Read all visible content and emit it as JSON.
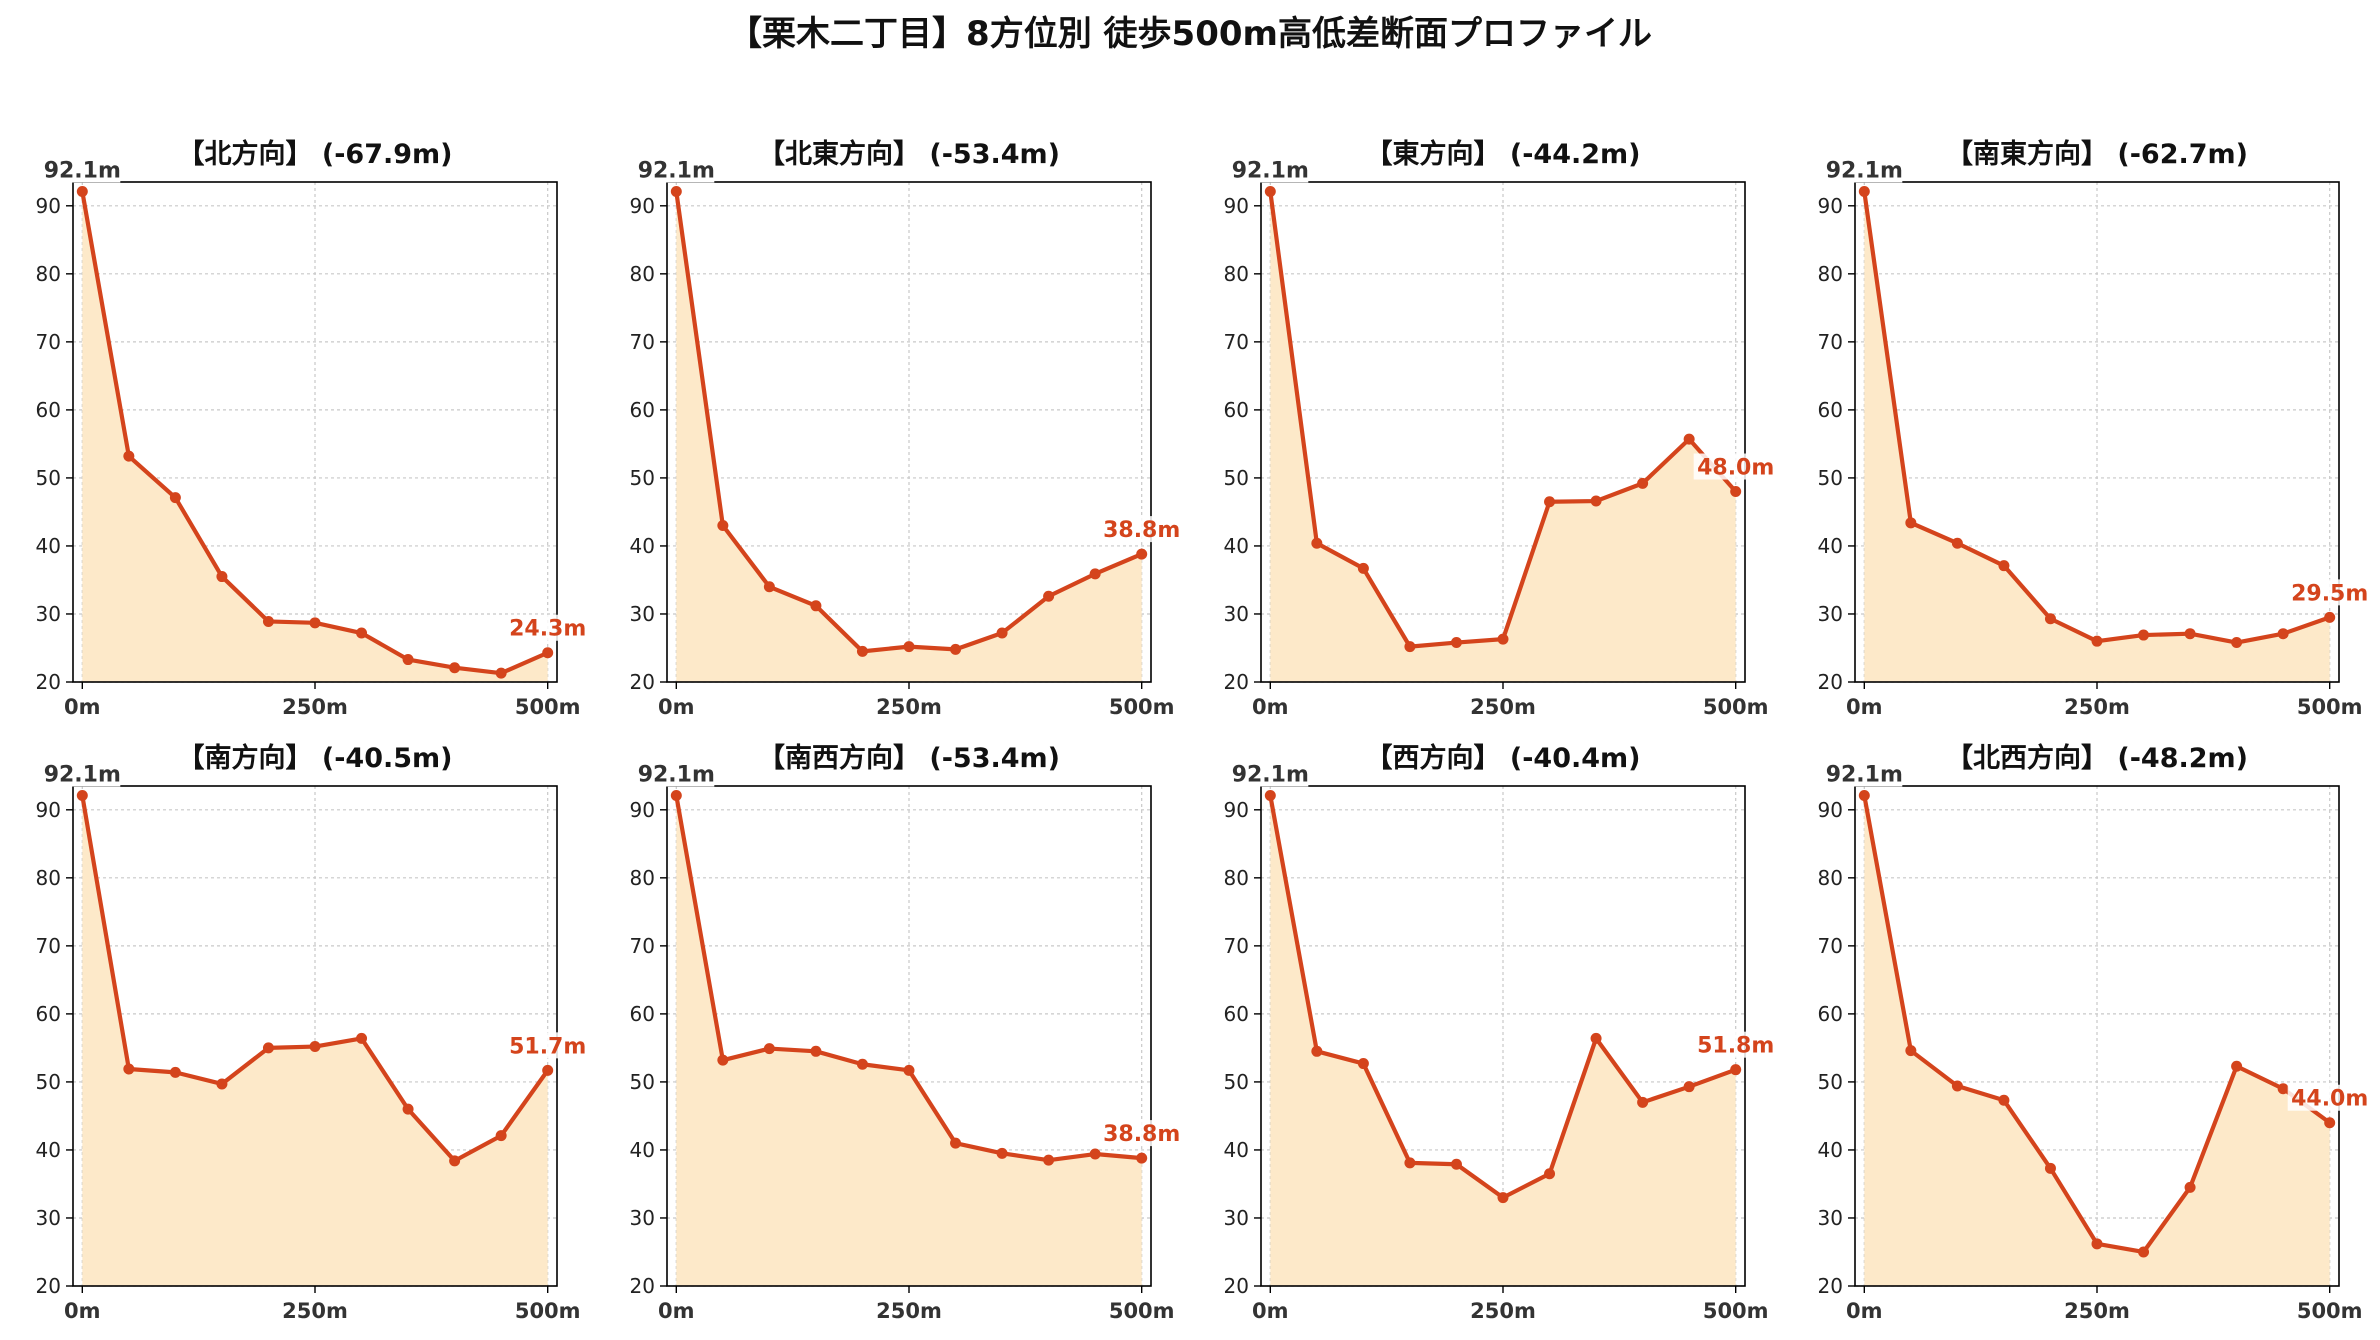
{
  "title": "【栗木二丁目】8方位別 徒歩500m高低差断面プロファイル",
  "colors": {
    "line": "#d4441c",
    "fill": "#fde9c9",
    "grid": "#c8c8c8",
    "axis": "#000000",
    "tick_label": "#222222",
    "xtick_label": "#333333"
  },
  "chart_data": [
    {
      "type": "area",
      "title": "【北方向】 (-67.9m)",
      "x": [
        0,
        50,
        100,
        150,
        200,
        250,
        300,
        350,
        400,
        450,
        500
      ],
      "values": [
        92.1,
        53.2,
        47.1,
        35.5,
        28.9,
        28.7,
        27.2,
        23.3,
        22.1,
        21.3,
        24.3
      ],
      "start_label": "92.1m",
      "end_label": "24.3m",
      "xticks": [
        "0m",
        "250m",
        "500m"
      ],
      "yticks": [
        20,
        30,
        40,
        50,
        60,
        70,
        80,
        90
      ],
      "ylim": [
        20,
        93.5
      ],
      "xlim": [
        -10,
        510
      ],
      "grid": true
    },
    {
      "type": "area",
      "title": "【北東方向】 (-53.4m)",
      "x": [
        0,
        50,
        100,
        150,
        200,
        250,
        300,
        350,
        400,
        450,
        500
      ],
      "values": [
        92.1,
        43.0,
        34.0,
        31.2,
        24.5,
        25.2,
        24.8,
        27.2,
        32.6,
        35.9,
        38.8
      ],
      "start_label": "92.1m",
      "end_label": "38.8m",
      "xticks": [
        "0m",
        "250m",
        "500m"
      ],
      "yticks": [
        20,
        30,
        40,
        50,
        60,
        70,
        80,
        90
      ],
      "ylim": [
        20,
        93.5
      ],
      "xlim": [
        -10,
        510
      ],
      "grid": true
    },
    {
      "type": "area",
      "title": "【東方向】 (-44.2m)",
      "x": [
        0,
        50,
        100,
        150,
        200,
        250,
        300,
        350,
        400,
        450,
        500
      ],
      "values": [
        92.1,
        40.4,
        36.7,
        25.2,
        25.8,
        26.3,
        46.5,
        46.6,
        49.2,
        55.7,
        48.0
      ],
      "start_label": "92.1m",
      "end_label": "48.0m",
      "xticks": [
        "0m",
        "250m",
        "500m"
      ],
      "yticks": [
        20,
        30,
        40,
        50,
        60,
        70,
        80,
        90
      ],
      "ylim": [
        20,
        93.5
      ],
      "xlim": [
        -10,
        510
      ],
      "grid": true
    },
    {
      "type": "area",
      "title": "【南東方向】 (-62.7m)",
      "x": [
        0,
        50,
        100,
        150,
        200,
        250,
        300,
        350,
        400,
        450,
        500
      ],
      "values": [
        92.1,
        43.4,
        40.4,
        37.1,
        29.3,
        26.0,
        26.9,
        27.1,
        25.8,
        27.1,
        29.5
      ],
      "start_label": "92.1m",
      "end_label": "29.5m",
      "xticks": [
        "0m",
        "250m",
        "500m"
      ],
      "yticks": [
        20,
        30,
        40,
        50,
        60,
        70,
        80,
        90
      ],
      "ylim": [
        20,
        93.5
      ],
      "xlim": [
        -10,
        510
      ],
      "grid": true
    },
    {
      "type": "area",
      "title": "【南方向】 (-40.5m)",
      "x": [
        0,
        50,
        100,
        150,
        200,
        250,
        300,
        350,
        400,
        450,
        500
      ],
      "values": [
        92.1,
        51.9,
        51.4,
        49.7,
        55.0,
        55.2,
        56.4,
        46.0,
        38.4,
        42.1,
        51.7
      ],
      "start_label": "92.1m",
      "end_label": "51.7m",
      "xticks": [
        "0m",
        "250m",
        "500m"
      ],
      "yticks": [
        20,
        30,
        40,
        50,
        60,
        70,
        80,
        90
      ],
      "ylim": [
        20,
        93.5
      ],
      "xlim": [
        -10,
        510
      ],
      "grid": true
    },
    {
      "type": "area",
      "title": "【南西方向】 (-53.4m)",
      "x": [
        0,
        50,
        100,
        150,
        200,
        250,
        300,
        350,
        400,
        450,
        500
      ],
      "values": [
        92.1,
        53.2,
        54.9,
        54.5,
        52.6,
        51.7,
        41.0,
        39.5,
        38.5,
        39.4,
        38.8
      ],
      "start_label": "92.1m",
      "end_label": "38.8m",
      "xticks": [
        "0m",
        "250m",
        "500m"
      ],
      "yticks": [
        20,
        30,
        40,
        50,
        60,
        70,
        80,
        90
      ],
      "ylim": [
        20,
        93.5
      ],
      "xlim": [
        -10,
        510
      ],
      "grid": true
    },
    {
      "type": "area",
      "title": "【西方向】 (-40.4m)",
      "x": [
        0,
        50,
        100,
        150,
        200,
        250,
        300,
        350,
        400,
        450,
        500
      ],
      "values": [
        92.1,
        54.5,
        52.7,
        38.1,
        37.9,
        33.0,
        36.5,
        56.4,
        47.0,
        49.3,
        51.8
      ],
      "start_label": "92.1m",
      "end_label": "51.8m",
      "xticks": [
        "0m",
        "250m",
        "500m"
      ],
      "yticks": [
        20,
        30,
        40,
        50,
        60,
        70,
        80,
        90
      ],
      "ylim": [
        20,
        93.5
      ],
      "xlim": [
        -10,
        510
      ],
      "grid": true
    },
    {
      "type": "area",
      "title": "【北西方向】 (-48.2m)",
      "x": [
        0,
        50,
        100,
        150,
        200,
        250,
        300,
        350,
        400,
        450,
        500
      ],
      "values": [
        92.1,
        54.6,
        49.4,
        47.3,
        37.3,
        26.2,
        25.0,
        34.5,
        52.3,
        49.0,
        44.0
      ],
      "start_label": "92.1m",
      "end_label": "44.0m",
      "xticks": [
        "0m",
        "250m",
        "500m"
      ],
      "yticks": [
        20,
        30,
        40,
        50,
        60,
        70,
        80,
        90
      ],
      "ylim": [
        20,
        93.5
      ],
      "xlim": [
        -10,
        510
      ],
      "grid": true
    }
  ]
}
